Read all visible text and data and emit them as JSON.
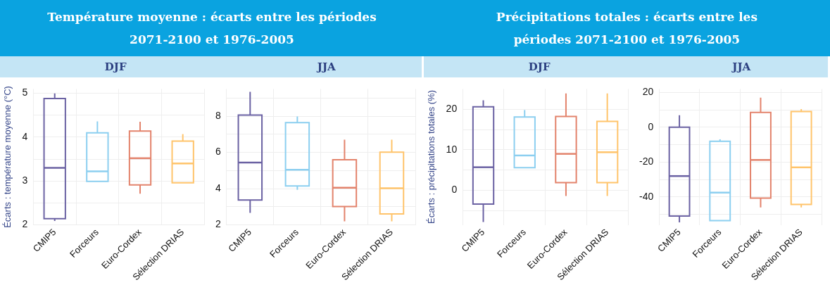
{
  "chart_data": [
    {
      "type": "box",
      "title": "Température moyenne : écarts entre les périodes 2071-2100 et 1976-2005",
      "subtitle": "DJF",
      "ylabel": "Écarts : température moyenne (°C)",
      "categories": [
        "CMIP5",
        "Forceurs",
        "Euro-Cordex",
        "Sélection DRIAS"
      ],
      "colors": [
        "#6b62a3",
        "#8ccff0",
        "#e3836c",
        "#ffc46b"
      ],
      "boxes": [
        {
          "low": 2.09,
          "q1": 2.14,
          "median": 3.3,
          "q3": 4.88,
          "high": 5.0
        },
        {
          "low": 2.99,
          "q1": 2.99,
          "median": 3.22,
          "q3": 4.1,
          "high": 4.36
        },
        {
          "low": 2.71,
          "q1": 2.91,
          "median": 3.52,
          "q3": 4.14,
          "high": 4.35
        },
        {
          "low": 2.96,
          "q1": 2.96,
          "median": 3.4,
          "q3": 3.91,
          "high": 4.07
        }
      ],
      "ylim": [
        2,
        5.1
      ],
      "yticks": [
        2,
        {
          "value": 2.5,
          "label": null
        },
        3,
        {
          "value": 3.5,
          "label": null
        },
        4,
        {
          "value": 4.5,
          "label": null
        },
        5
      ],
      "grid": true
    },
    {
      "type": "box",
      "subtitle": "JJA",
      "categories": [
        "CMIP5",
        "Forceurs",
        "Euro-Cordex",
        "Sélection DRIAS"
      ],
      "colors": [
        "#6b62a3",
        "#8ccff0",
        "#e3836c",
        "#ffc46b"
      ],
      "boxes": [
        {
          "low": 2.66,
          "q1": 3.37,
          "median": 5.44,
          "q3": 8.06,
          "high": 9.34
        },
        {
          "low": 3.93,
          "q1": 4.15,
          "median": 5.04,
          "q3": 7.64,
          "high": 7.98
        },
        {
          "low": 2.19,
          "q1": 3.01,
          "median": 4.05,
          "q3": 5.59,
          "high": 6.7
        },
        {
          "low": 2.19,
          "q1": 2.6,
          "median": 4.02,
          "q3": 6.01,
          "high": 6.7
        }
      ],
      "ylim": [
        2,
        9.5
      ],
      "yticks": [
        2,
        {
          "value": 3,
          "label": null
        },
        4,
        {
          "value": 5,
          "label": null
        },
        6,
        {
          "value": 7,
          "label": null
        },
        8,
        {
          "value": 9,
          "label": null
        }
      ],
      "grid": true
    },
    {
      "type": "box",
      "title": "Précipitations totales : écarts entre les périodes 2071-2100 et 1976-2005",
      "subtitle": "DJF",
      "ylabel": "Écarts : précipitations totales (%)",
      "categories": [
        "CMIP5",
        "Forceurs",
        "Euro-Cordex",
        "Sélection DRIAS"
      ],
      "colors": [
        "#6b62a3",
        "#8ccff0",
        "#e3836c",
        "#ffc46b"
      ],
      "boxes": [
        {
          "low": -7.8,
          "q1": -3.4,
          "median": 5.7,
          "q3": 20.6,
          "high": 22.2
        },
        {
          "low": 5.6,
          "q1": 5.6,
          "median": 8.6,
          "q3": 18.1,
          "high": 19.8
        },
        {
          "low": -1.4,
          "q1": 1.9,
          "median": 9.0,
          "q3": 18.2,
          "high": 23.9
        },
        {
          "low": -1.4,
          "q1": 1.9,
          "median": 9.4,
          "q3": 17.0,
          "high": 23.9
        }
      ],
      "ylim": [
        -8.5,
        25
      ],
      "yticks": [
        {
          "value": -5,
          "label": null
        },
        0,
        {
          "value": 5,
          "label": null
        },
        10,
        {
          "value": 15,
          "label": null
        },
        20
      ],
      "grid": true
    },
    {
      "type": "box",
      "subtitle": "JJA",
      "categories": [
        "CMIP5",
        "Forceurs",
        "Euro-Cordex",
        "Sélection DRIAS"
      ],
      "colors": [
        "#6b62a3",
        "#8ccff0",
        "#e3836c",
        "#ffc46b"
      ],
      "boxes": [
        {
          "low": -54.6,
          "q1": -50.9,
          "median": -28,
          "q3": 0,
          "high": 6.9
        },
        {
          "low": -53.6,
          "q1": -53.6,
          "median": -37.5,
          "q3": -8,
          "high": -6.9
        },
        {
          "low": -46,
          "q1": -40.6,
          "median": -18.75,
          "q3": 8.5,
          "high": 17
        },
        {
          "low": -46,
          "q1": -44.3,
          "median": -23,
          "q3": 9,
          "high": 10.4
        }
      ],
      "ylim": [
        -56,
        22
      ],
      "yticks": [
        {
          "value": -50,
          "label": null
        },
        -40,
        {
          "value": -30,
          "label": null
        },
        -20,
        {
          "value": -10,
          "label": null
        },
        0,
        {
          "value": 10,
          "label": null
        },
        20
      ],
      "grid": true
    }
  ]
}
